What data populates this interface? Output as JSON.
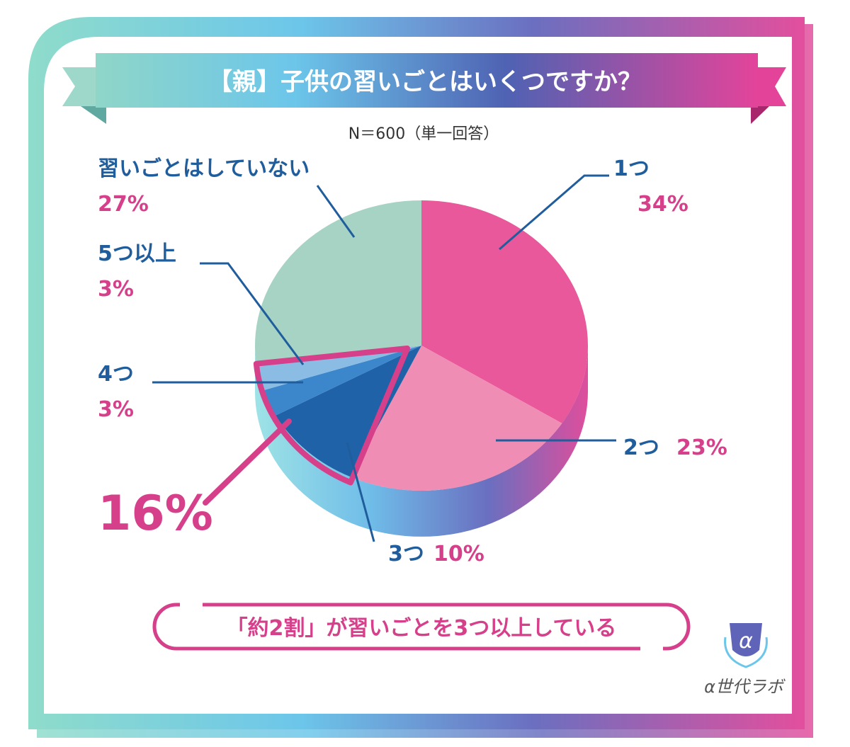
{
  "chart_data": {
    "type": "pie",
    "title": "【親】子供の習いごとはいくつですか？",
    "subtitle": "N＝600（単一回答）",
    "slices": [
      {
        "label": "1つ",
        "value": 34,
        "value_text": "34%",
        "color": "#e8589a"
      },
      {
        "label": "2つ",
        "value": 23,
        "value_text": "23%",
        "color": "#ef8db5"
      },
      {
        "label": "3つ",
        "value": 10,
        "value_text": "10%",
        "color": "#1f62a8"
      },
      {
        "label": "4つ",
        "value": 3,
        "value_text": "3%",
        "color": "#3c86cc"
      },
      {
        "label": "5つ以上",
        "value": 3,
        "value_text": "3%",
        "color": "#8bbde4"
      },
      {
        "label": "習いごとはしていない",
        "value": 27,
        "value_text": "27%",
        "color": "#a7d3c4"
      }
    ],
    "highlight": {
      "value_text": "16%",
      "color": "#d63f8a"
    },
    "conclusion": "「約2割」が習いごとを3つ以上している"
  },
  "logo": {
    "text": "α世代ラボ"
  },
  "colors": {
    "label_blue": "#1f5d9c",
    "label_pink": "#d63f8a",
    "frame_teal": "#7fd3c6",
    "frame_magenta": "#e2479a"
  }
}
